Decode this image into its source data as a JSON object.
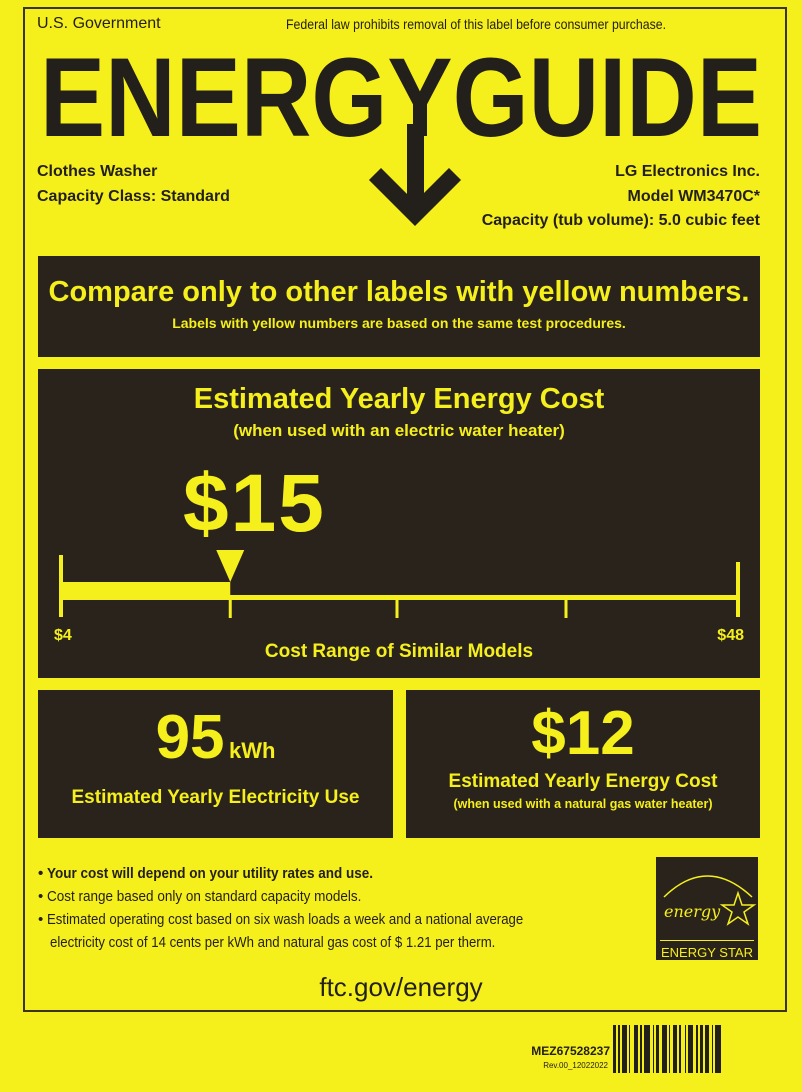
{
  "header": {
    "left": "U.S. Government",
    "right": "Federal law prohibits removal of this label before consumer purchase.",
    "title": "ENERGYGUIDE"
  },
  "product": {
    "type": "Clothes Washer",
    "capacity_class": "Capacity Class: Standard",
    "manufacturer": "LG Electronics Inc.",
    "model_label": "Model",
    "model": "WM3470C*",
    "capacity": "Capacity (tub volume): 5.0 cubic feet"
  },
  "compare": {
    "headline": "Compare only to other labels with yellow numbers.",
    "subline": "Labels with yellow numbers are based on the same test procedures."
  },
  "cost": {
    "title": "Estimated Yearly Energy Cost",
    "subtitle": "(when used with an electric water heater)",
    "value": "$15",
    "range_min_label": "$4",
    "range_max_label": "$48",
    "range_caption": "Cost Range of Similar Models",
    "range_min": 4,
    "range_max": 48,
    "marker": 15
  },
  "electricity": {
    "value": "95",
    "unit": "kWh",
    "label": "Estimated Yearly Electricity Use"
  },
  "gas_cost": {
    "value": "$12",
    "label": "Estimated Yearly Energy Cost",
    "sublabel": "(when used with a natural gas water heater)"
  },
  "notes": [
    "Your cost will depend on your utility rates and use.",
    "Cost range based only on standard capacity models.",
    "Estimated operating cost based on six wash loads a week and a national average",
    "electricity cost of 14 cents per kWh and natural gas cost of $ 1.21 per therm."
  ],
  "website": "ftc.gov/energy",
  "energy_star": {
    "script": "energy",
    "label": "ENERGY STAR"
  },
  "footer": {
    "part_number": "MEZ67528237",
    "revision": "Rev.00_12022022"
  },
  "colors": {
    "label_yellow": "#f5ef1c",
    "box_dark": "#2a231c"
  }
}
